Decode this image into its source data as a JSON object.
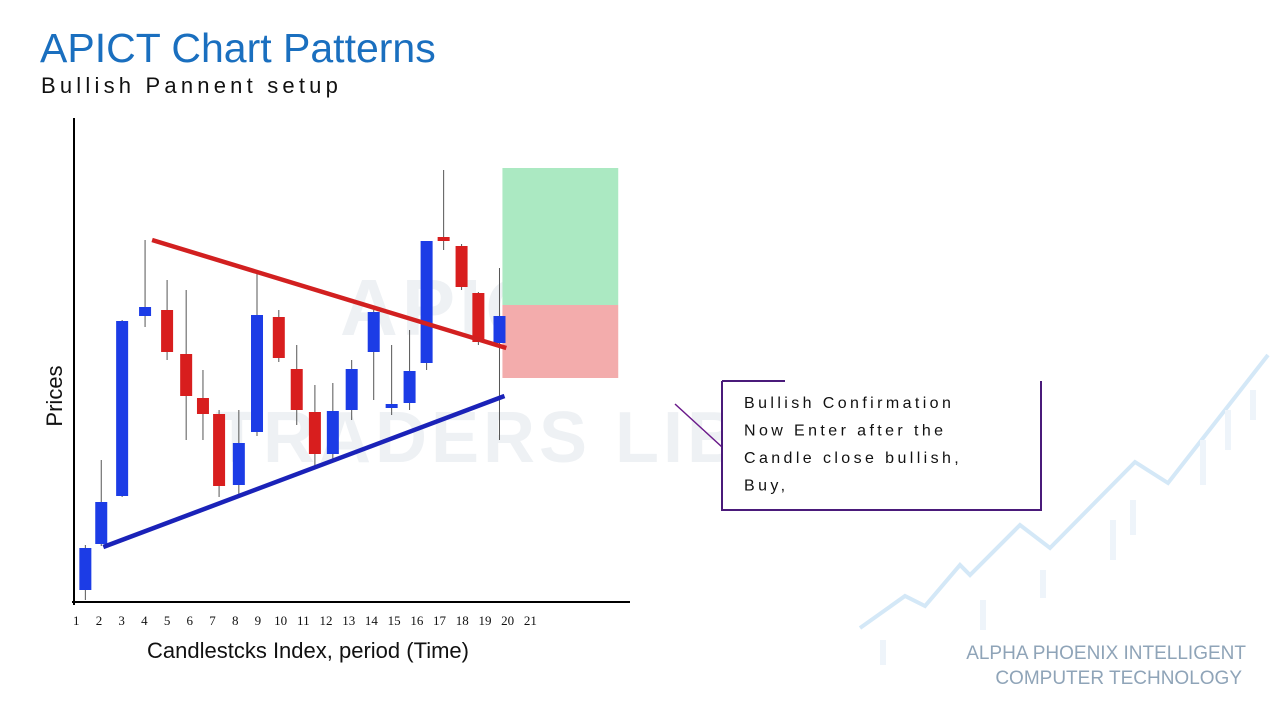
{
  "chart_data": {
    "type": "candlestick",
    "title": "APICT Chart Patterns",
    "subtitle": "Bullish Pannent setup",
    "xlabel": "Candlestcks Index, period (Time)",
    "ylabel": "Prices",
    "xlim": [
      0.9,
      25.3
    ],
    "ylim": [
      0,
      96
    ],
    "xticks": [
      1,
      2,
      3,
      4,
      5,
      6,
      7,
      8,
      9,
      10,
      11,
      12,
      13,
      14,
      15,
      16,
      17,
      18,
      19,
      20,
      21
    ],
    "up_color": "#1c3ce6",
    "down_color": "#d81e1e",
    "x": [
      1.4,
      2.1,
      3.02,
      4.03,
      5.0,
      5.84,
      6.58,
      7.29,
      8.16,
      8.96,
      9.92,
      10.71,
      11.51,
      12.3,
      13.13,
      14.1,
      14.89,
      15.68,
      16.43,
      17.18,
      17.97,
      18.71,
      19.64
    ],
    "open": [
      2,
      11.2,
      20.8,
      56.8,
      58,
      49.2,
      40.4,
      37.2,
      23,
      33.6,
      56.6,
      46.2,
      37.6,
      29.2,
      38,
      49.6,
      38.4,
      39.4,
      47.4,
      72.6,
      70.8,
      61.4,
      51.4
    ],
    "high": [
      11,
      28,
      56,
      72,
      64,
      62,
      46,
      38,
      38,
      65.6,
      58,
      51,
      43,
      43.4,
      48,
      58,
      51,
      54,
      71.8,
      86,
      71.2,
      61.6,
      66.4
    ],
    "low": [
      0,
      10.8,
      20.6,
      54.6,
      48,
      32,
      32,
      20.6,
      20.6,
      32.8,
      47.6,
      35,
      26.8,
      28,
      36,
      40,
      37,
      38,
      46,
      70,
      62,
      51,
      32
    ],
    "close": [
      10.4,
      19.6,
      55.8,
      58.6,
      49.6,
      40.8,
      37.2,
      22.8,
      31.4,
      57,
      48.4,
      38,
      29.2,
      37.8,
      46.2,
      57.6,
      39.2,
      45.8,
      71.8,
      71.8,
      62.6,
      51.6,
      56.8
    ],
    "trendlines": [
      {
        "color": "#d22020",
        "x": [
          4.34,
          19.94
        ],
        "y": [
          72,
          50.4
        ]
      },
      {
        "color": "#1a22b8",
        "x": [
          2.19,
          19.86
        ],
        "y": [
          10.6,
          40.8
        ]
      }
    ],
    "zones": [
      {
        "color": "#a6e8bf",
        "x": [
          19.77,
          24.87
        ],
        "y": [
          59,
          86.4
        ]
      },
      {
        "color": "#f2a8a8",
        "x": [
          19.77,
          24.87
        ],
        "y": [
          44.4,
          59
        ]
      }
    ],
    "annotation": [
      "Bullish Confirmation",
      "Now Enter after the",
      "Candle close bullish,",
      "Buy,"
    ],
    "watermark": [
      "APICT",
      "TRADERS LIBRARY"
    ],
    "footer": [
      "ALPHA PHOENIX INTELLIGENT",
      "COMPUTER TECHNOLOGY"
    ]
  }
}
